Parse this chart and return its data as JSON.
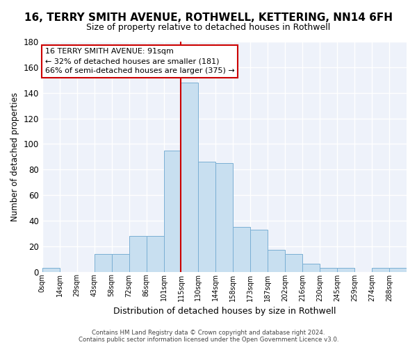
{
  "title": "16, TERRY SMITH AVENUE, ROTHWELL, KETTERING, NN14 6FH",
  "subtitle": "Size of property relative to detached houses in Rothwell",
  "xlabel": "Distribution of detached houses by size in Rothwell",
  "ylabel": "Number of detached properties",
  "bin_labels": [
    "0sqm",
    "14sqm",
    "29sqm",
    "43sqm",
    "58sqm",
    "72sqm",
    "86sqm",
    "101sqm",
    "115sqm",
    "130sqm",
    "144sqm",
    "158sqm",
    "173sqm",
    "187sqm",
    "202sqm",
    "216sqm",
    "230sqm",
    "245sqm",
    "259sqm",
    "274sqm",
    "288sqm"
  ],
  "bar_heights": [
    3,
    0,
    0,
    14,
    14,
    28,
    28,
    95,
    148,
    86,
    85,
    35,
    33,
    17,
    14,
    6,
    3,
    3,
    0,
    3,
    3
  ],
  "bar_color": "#c8dff0",
  "bar_edge_color": "#7aafd4",
  "vline_x_idx": 8,
  "vline_color": "#cc0000",
  "annotation_text": "16 TERRY SMITH AVENUE: 91sqm\n← 32% of detached houses are smaller (181)\n66% of semi-detached houses are larger (375) →",
  "annotation_box_color": "#ffffff",
  "annotation_box_edge": "#cc0000",
  "ylim": [
    0,
    180
  ],
  "yticks": [
    0,
    20,
    40,
    60,
    80,
    100,
    120,
    140,
    160,
    180
  ],
  "footer_line1": "Contains HM Land Registry data © Crown copyright and database right 2024.",
  "footer_line2": "Contains public sector information licensed under the Open Government Licence v3.0.",
  "plot_bg_color": "#eef2fa",
  "fig_bg_color": "#ffffff",
  "grid_color": "#ffffff",
  "title_fontsize": 11,
  "subtitle_fontsize": 9
}
